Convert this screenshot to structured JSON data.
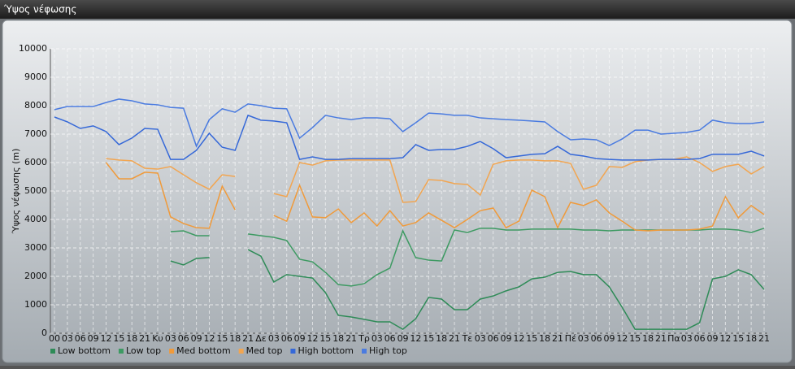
{
  "chart_data": {
    "type": "line",
    "title": "Ύψος νέφωσης",
    "y_label": "Ύψος νέφωσης (m)",
    "categories": [
      "00",
      "03",
      "06",
      "09",
      "12",
      "15",
      "18",
      "21",
      "Κυ",
      "03",
      "06",
      "09",
      "12",
      "15",
      "18",
      "21",
      "Δε",
      "03",
      "06",
      "09",
      "12",
      "15",
      "18",
      "21",
      "Τρ",
      "03",
      "06",
      "09",
      "12",
      "15",
      "18",
      "21",
      "Τε",
      "03",
      "06",
      "09",
      "12",
      "15",
      "18",
      "21",
      "Πέ",
      "03",
      "06",
      "09",
      "12",
      "15",
      "18",
      "21",
      "Πα",
      "03",
      "06",
      "09",
      "12",
      "15",
      "18",
      "21"
    ],
    "series": [
      {
        "name": "Low bottom",
        "color": "#2e8b57",
        "values": [
          null,
          null,
          null,
          null,
          null,
          null,
          null,
          null,
          null,
          2540,
          2400,
          2630,
          2660,
          null,
          null,
          2940,
          2710,
          1800,
          2060,
          2000,
          1940,
          1430,
          630,
          570,
          490,
          400,
          400,
          140,
          510,
          1260,
          1200,
          830,
          830,
          1200,
          1310,
          1490,
          1630,
          1910,
          1970,
          2140,
          2170,
          2060,
          2060,
          1630,
          910,
          140,
          140,
          140,
          140,
          140,
          370,
          1910,
          2000,
          2230,
          2060,
          1540
        ]
      },
      {
        "name": "Low top",
        "color": "#3d9a62",
        "values": [
          null,
          null,
          null,
          null,
          null,
          null,
          null,
          null,
          null,
          3570,
          3600,
          3430,
          3430,
          null,
          null,
          3490,
          3430,
          3370,
          3260,
          2600,
          2510,
          2140,
          1710,
          1660,
          1740,
          2060,
          2290,
          3600,
          2660,
          2570,
          2540,
          3630,
          3540,
          3690,
          3690,
          3630,
          3630,
          3660,
          3660,
          3660,
          3660,
          3630,
          3630,
          3600,
          3630,
          3630,
          3630,
          3630,
          3630,
          3630,
          3630,
          3660,
          3660,
          3630,
          3540,
          3690
        ]
      },
      {
        "name": "Med bottom",
        "color": "#f09a3a",
        "values": [
          null,
          null,
          null,
          null,
          6000,
          5430,
          5430,
          5660,
          5630,
          4090,
          3860,
          3710,
          3690,
          5170,
          4340,
          null,
          null,
          4140,
          3940,
          5200,
          4090,
          4060,
          4370,
          3890,
          4230,
          3770,
          4310,
          3770,
          3890,
          4230,
          3970,
          3710,
          4000,
          4310,
          4400,
          3710,
          3940,
          5030,
          4800,
          3710,
          4600,
          4490,
          4690,
          4230,
          3940,
          3630,
          3600,
          3630,
          3630,
          3630,
          3660,
          3770,
          4800,
          4060,
          4490,
          4170
        ]
      },
      {
        "name": "Med top",
        "color": "#f2a550",
        "values": [
          null,
          null,
          null,
          null,
          6140,
          6090,
          6060,
          5800,
          5770,
          5860,
          5570,
          5290,
          5060,
          5570,
          5510,
          null,
          null,
          4910,
          4800,
          6000,
          5910,
          6060,
          6090,
          6090,
          6090,
          6090,
          6090,
          4600,
          4630,
          5400,
          5370,
          5260,
          5230,
          4860,
          5940,
          6060,
          6090,
          6090,
          6060,
          6060,
          5970,
          5060,
          5200,
          5860,
          5830,
          6030,
          6090,
          6110,
          6110,
          6200,
          6000,
          5690,
          5860,
          5940,
          5600,
          5860
        ]
      },
      {
        "name": "High bottom",
        "color": "#3568d8",
        "values": [
          7600,
          7430,
          7200,
          7290,
          7090,
          6630,
          6860,
          7200,
          7170,
          6110,
          6110,
          6430,
          7030,
          6540,
          6430,
          7660,
          7490,
          7460,
          7400,
          6110,
          6200,
          6110,
          6110,
          6140,
          6140,
          6140,
          6140,
          6170,
          6630,
          6430,
          6460,
          6460,
          6570,
          6740,
          6490,
          6170,
          6230,
          6290,
          6310,
          6570,
          6290,
          6230,
          6140,
          6110,
          6090,
          6090,
          6090,
          6110,
          6110,
          6110,
          6140,
          6290,
          6290,
          6290,
          6400,
          6230
        ]
      },
      {
        "name": "High top",
        "color": "#4a7be0",
        "values": [
          7860,
          7970,
          7970,
          7970,
          8110,
          8230,
          8170,
          8060,
          8030,
          7940,
          7910,
          6570,
          7510,
          7890,
          7770,
          8060,
          8000,
          7910,
          7890,
          6860,
          7230,
          7660,
          7570,
          7510,
          7570,
          7570,
          7540,
          7090,
          7400,
          7740,
          7710,
          7660,
          7660,
          7570,
          7540,
          7510,
          7490,
          7460,
          7430,
          7090,
          6800,
          6830,
          6800,
          6600,
          6830,
          7140,
          7140,
          7000,
          7030,
          7060,
          7140,
          7490,
          7400,
          7370,
          7370,
          7430
        ]
      }
    ],
    "ylim": [
      0,
      10000
    ],
    "yticks": [
      0,
      1000,
      2000,
      3000,
      4000,
      5000,
      6000,
      7000,
      8000,
      9000,
      10000
    ],
    "grid": true,
    "legend": "bottom"
  }
}
